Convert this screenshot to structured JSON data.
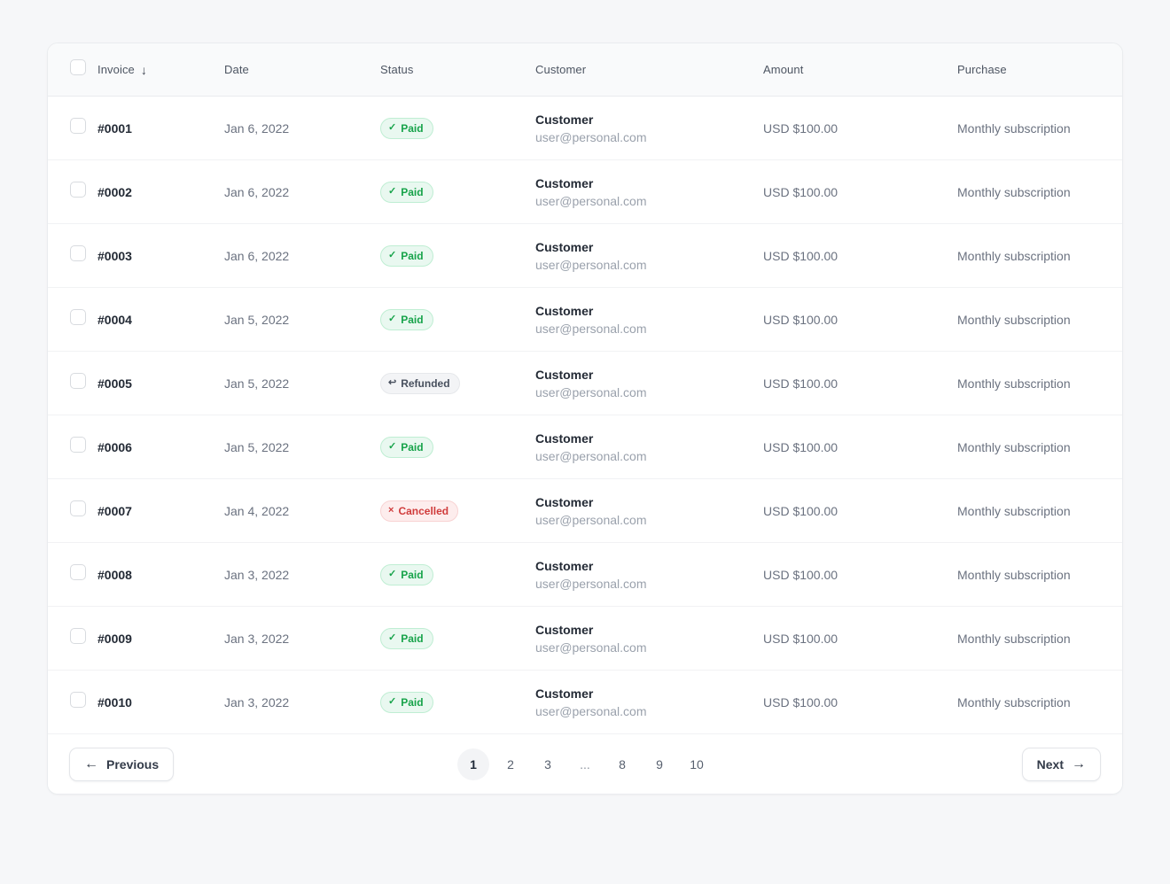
{
  "table": {
    "columns": [
      {
        "key": "invoice",
        "label": "Invoice"
      },
      {
        "key": "date",
        "label": "Date"
      },
      {
        "key": "status",
        "label": "Status"
      },
      {
        "key": "customer",
        "label": "Customer"
      },
      {
        "key": "amount",
        "label": "Amount"
      },
      {
        "key": "purchase",
        "label": "Purchase"
      }
    ],
    "sort": {
      "column": "invoice",
      "direction": "desc",
      "arrow": "↓"
    },
    "rows": [
      {
        "invoice": "#0001",
        "date": "Jan 6, 2022",
        "status": "Paid",
        "customer_name": "Customer",
        "customer_email": "user@personal.com",
        "amount": "USD $100.00",
        "purchase": "Monthly subscription"
      },
      {
        "invoice": "#0002",
        "date": "Jan 6, 2022",
        "status": "Paid",
        "customer_name": "Customer",
        "customer_email": "user@personal.com",
        "amount": "USD $100.00",
        "purchase": "Monthly subscription"
      },
      {
        "invoice": "#0003",
        "date": "Jan 6, 2022",
        "status": "Paid",
        "customer_name": "Customer",
        "customer_email": "user@personal.com",
        "amount": "USD $100.00",
        "purchase": "Monthly subscription"
      },
      {
        "invoice": "#0004",
        "date": "Jan 5, 2022",
        "status": "Paid",
        "customer_name": "Customer",
        "customer_email": "user@personal.com",
        "amount": "USD $100.00",
        "purchase": "Monthly subscription"
      },
      {
        "invoice": "#0005",
        "date": "Jan 5, 2022",
        "status": "Refunded",
        "customer_name": "Customer",
        "customer_email": "user@personal.com",
        "amount": "USD $100.00",
        "purchase": "Monthly subscription"
      },
      {
        "invoice": "#0006",
        "date": "Jan 5, 2022",
        "status": "Paid",
        "customer_name": "Customer",
        "customer_email": "user@personal.com",
        "amount": "USD $100.00",
        "purchase": "Monthly subscription"
      },
      {
        "invoice": "#0007",
        "date": "Jan 4, 2022",
        "status": "Cancelled",
        "customer_name": "Customer",
        "customer_email": "user@personal.com",
        "amount": "USD $100.00",
        "purchase": "Monthly subscription"
      },
      {
        "invoice": "#0008",
        "date": "Jan 3, 2022",
        "status": "Paid",
        "customer_name": "Customer",
        "customer_email": "user@personal.com",
        "amount": "USD $100.00",
        "purchase": "Monthly subscription"
      },
      {
        "invoice": "#0009",
        "date": "Jan 3, 2022",
        "status": "Paid",
        "customer_name": "Customer",
        "customer_email": "user@personal.com",
        "amount": "USD $100.00",
        "purchase": "Monthly subscription"
      },
      {
        "invoice": "#0010",
        "date": "Jan 3, 2022",
        "status": "Paid",
        "customer_name": "Customer",
        "customer_email": "user@personal.com",
        "amount": "USD $100.00",
        "purchase": "Monthly subscription"
      }
    ]
  },
  "status_styles": {
    "Paid": {
      "icon": "check-icon",
      "icon_glyph": "✓",
      "bg": "#e9f8f0",
      "border": "#bfeed3",
      "text": "#17a34a"
    },
    "Refunded": {
      "icon": "undo-icon",
      "icon_glyph": "↩",
      "bg": "#f3f4f6",
      "border": "#e6e8eb",
      "text": "#48505e"
    },
    "Cancelled": {
      "icon": "x-icon",
      "icon_glyph": "×",
      "bg": "#fdeded",
      "border": "#f8d3d3",
      "text": "#d03c3c"
    }
  },
  "pagination": {
    "previous_label": "Previous",
    "next_label": "Next",
    "prev_icon": "←",
    "next_icon": "→",
    "pages": [
      "1",
      "2",
      "3",
      "...",
      "8",
      "9",
      "10"
    ],
    "active_page": "1",
    "ellipsis": "..."
  }
}
